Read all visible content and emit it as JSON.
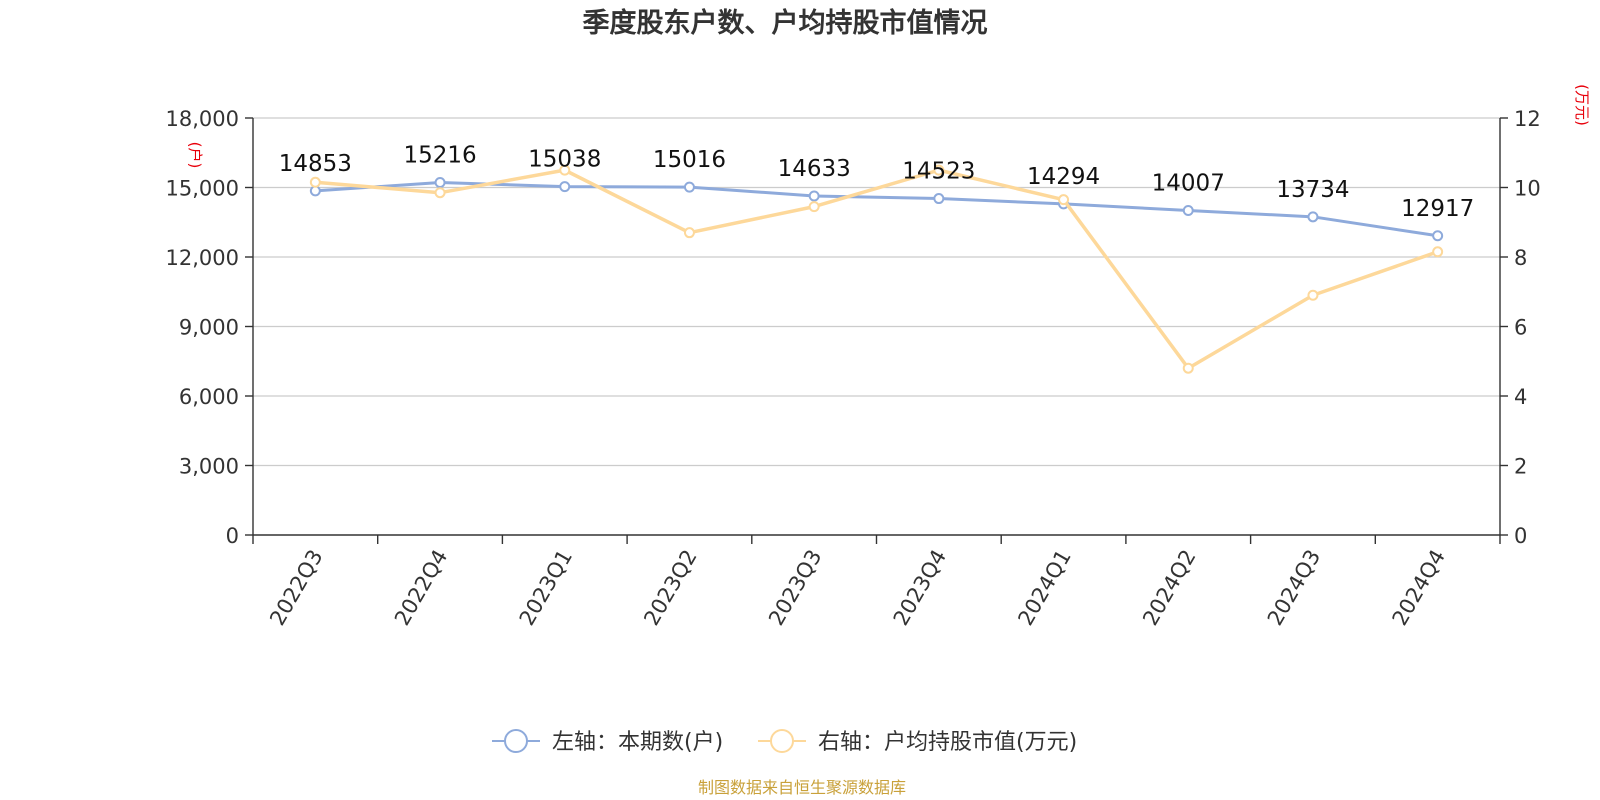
{
  "chart_data": {
    "type": "line",
    "title": "季度股东户数、户均持股市值情况",
    "categories": [
      "2022Q3",
      "2022Q4",
      "2023Q1",
      "2023Q2",
      "2023Q3",
      "2023Q4",
      "2024Q1",
      "2024Q2",
      "2024Q3",
      "2024Q4"
    ],
    "y_left": {
      "unit": "(户)",
      "ylim": [
        0,
        18000
      ],
      "ticks": [
        0,
        3000,
        6000,
        9000,
        12000,
        15000,
        18000
      ],
      "tick_labels": [
        "0",
        "3,000",
        "6,000",
        "9,000",
        "12,000",
        "15,000",
        "18,000"
      ]
    },
    "y_right": {
      "unit": "(万元)",
      "ylim": [
        0,
        12
      ],
      "ticks": [
        0,
        2,
        4,
        6,
        8,
        10,
        12
      ],
      "tick_labels": [
        "0",
        "2",
        "4",
        "6",
        "8",
        "10",
        "12"
      ]
    },
    "series": [
      {
        "name": "左轴：本期数(户)",
        "axis": "left",
        "color": "#8eaadb",
        "values": [
          14853,
          15216,
          15038,
          15016,
          14633,
          14523,
          14294,
          14007,
          13734,
          12917
        ],
        "data_labels": [
          "14853",
          "15216",
          "15038",
          "15016",
          "14633",
          "14523",
          "14294",
          "14007",
          "13734",
          "12917"
        ]
      },
      {
        "name": "右轴：户均持股市值(万元)",
        "axis": "right",
        "color": "#fdd89a",
        "values": [
          10.15,
          9.85,
          10.5,
          8.7,
          9.45,
          10.5,
          9.65,
          4.8,
          6.9,
          8.15
        ]
      }
    ],
    "grid": true,
    "legend_position": "bottom-center"
  },
  "source": "制图数据来自恒生聚源数据库"
}
